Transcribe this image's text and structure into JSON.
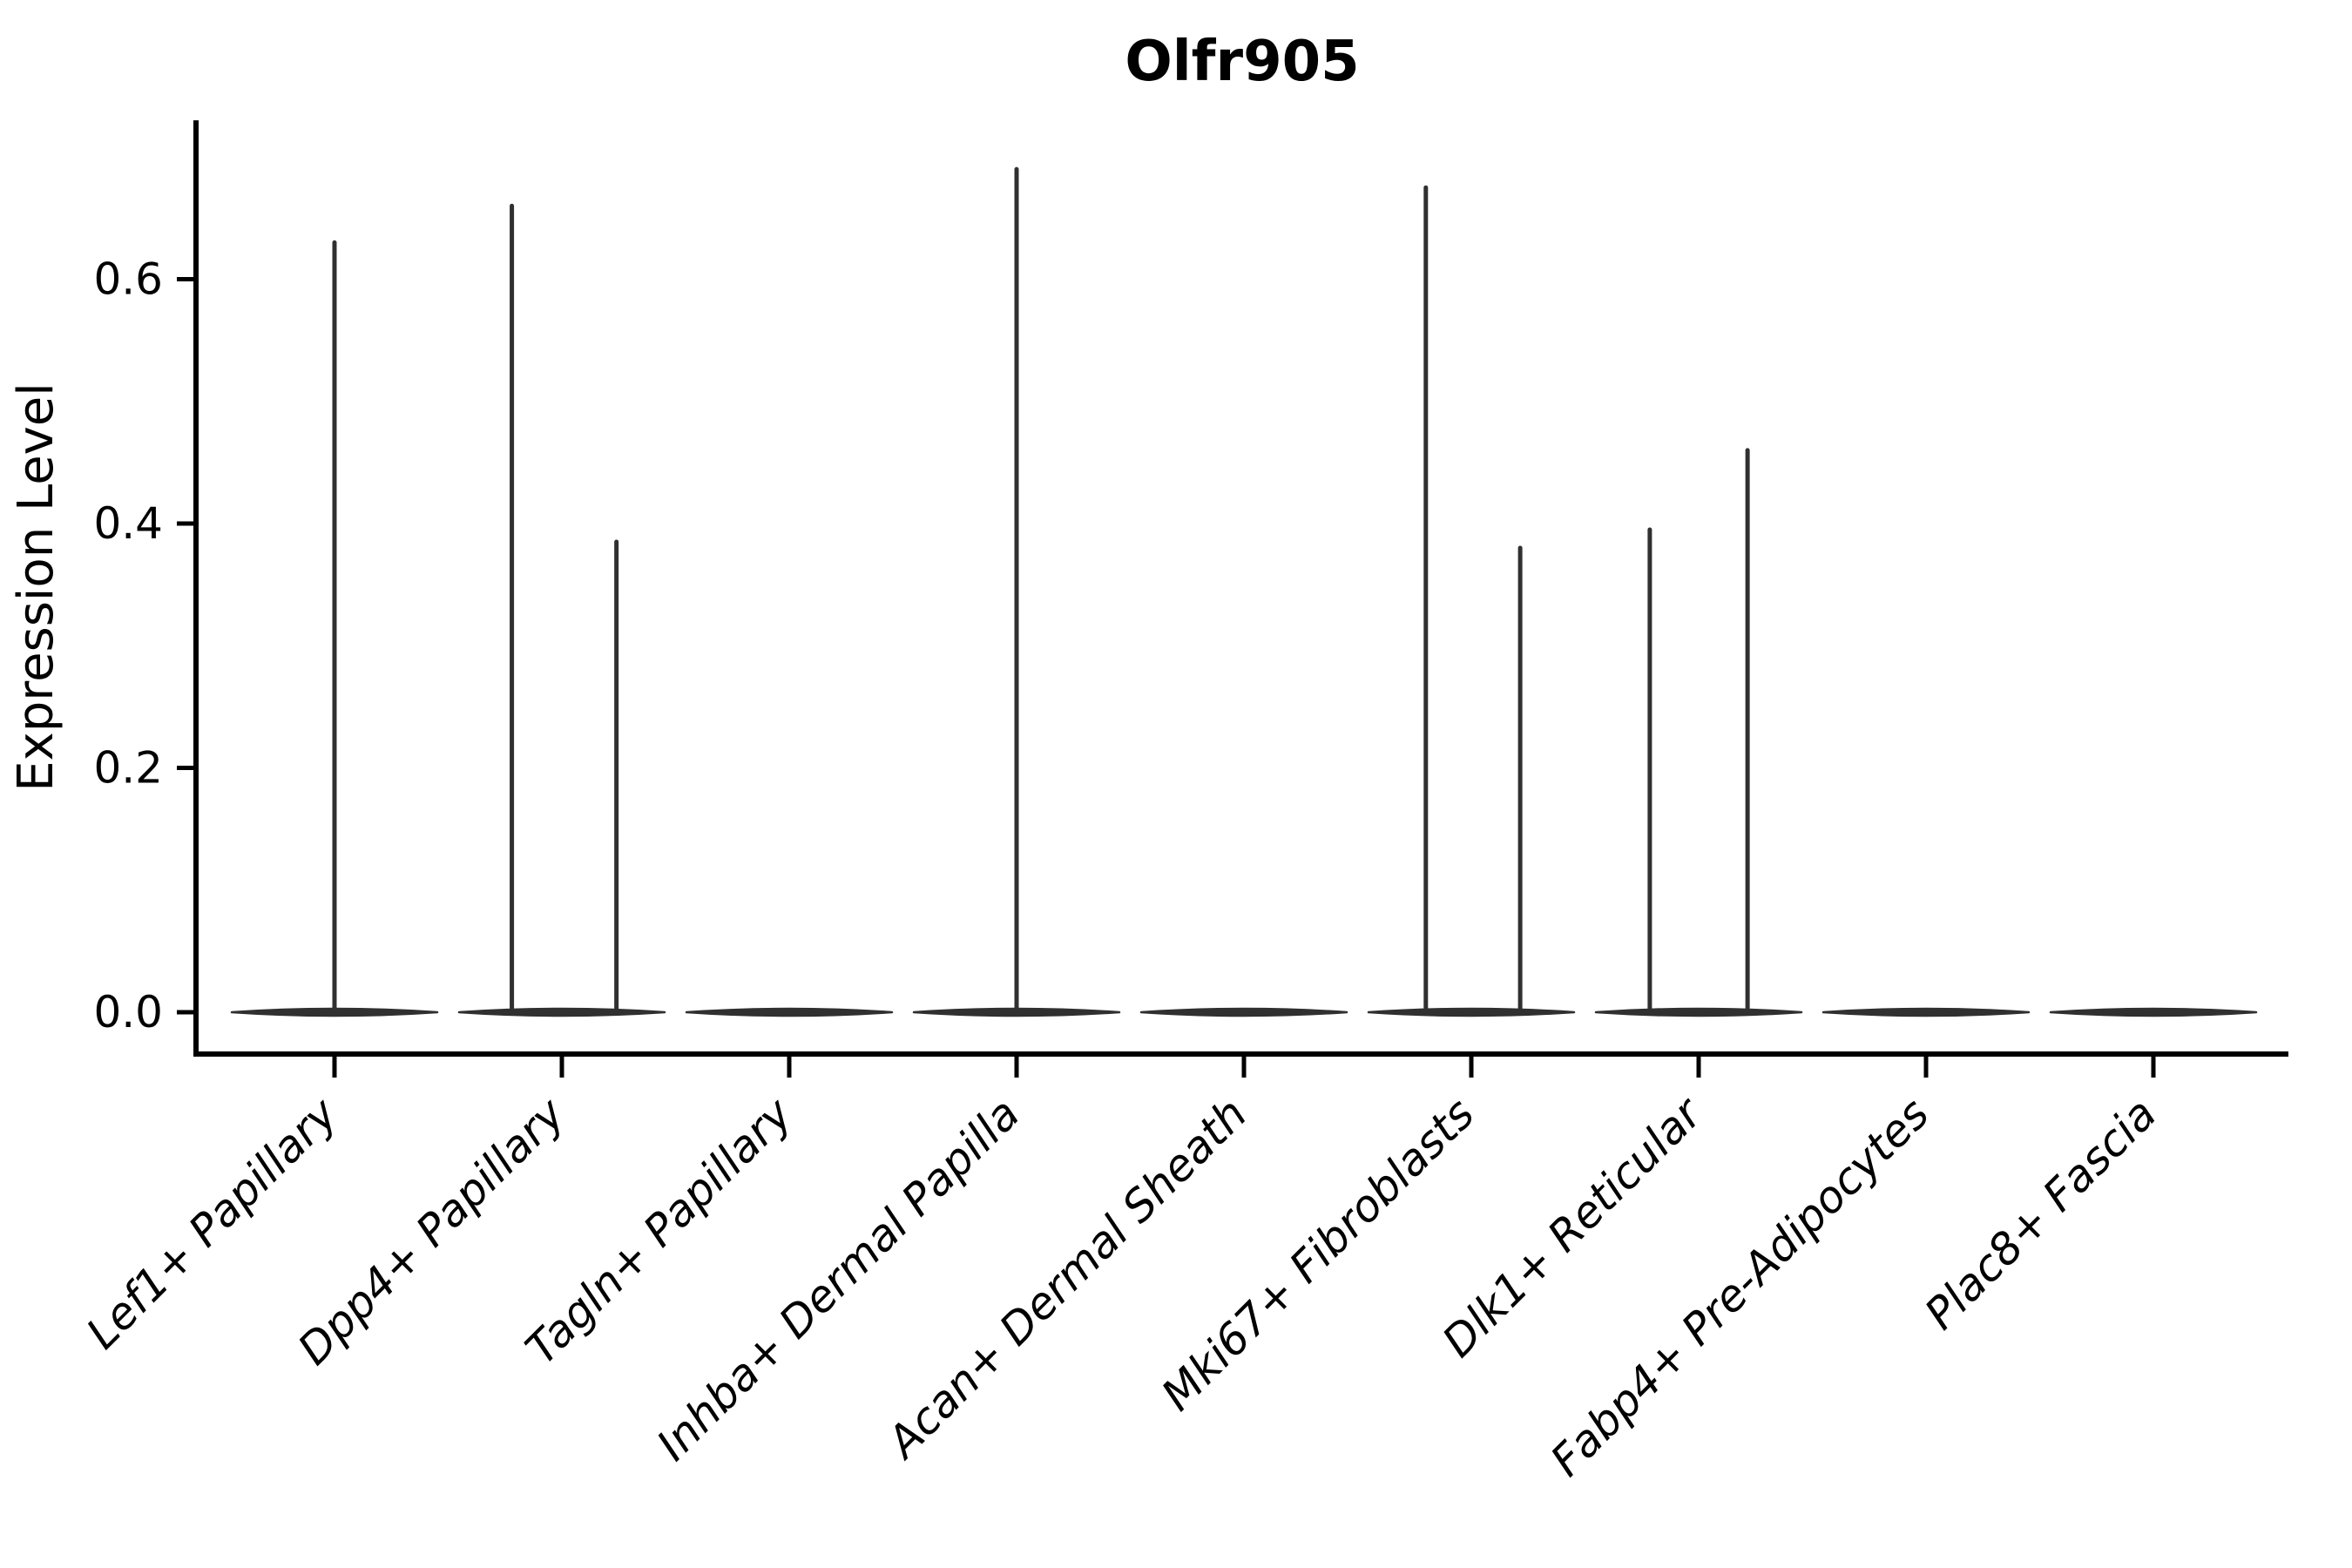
{
  "figure": {
    "background": "#ffffff"
  },
  "chart_data": {
    "type": "violin",
    "title": "Olfr905",
    "xlabel": "",
    "ylabel": "Expression Level",
    "ylim": [
      -0.034,
      0.73
    ],
    "yticks": [
      0.0,
      0.2,
      0.4,
      0.6
    ],
    "ytick_labels": [
      "0.0",
      "0.2",
      "0.4",
      "0.6"
    ],
    "x_tick_rotation_deg": 45,
    "grid": false,
    "legend": null,
    "violin_color": "#303030",
    "axis_color": "#000000",
    "categories": [
      "Lef1+ Papillary",
      "Dpp4+ Papillary",
      "Tagln+ Papillary",
      "Inhba+ Dermal Papilla",
      "Acan+ Dermal Sheath",
      "Mki67+ Fibroblasts",
      "Dlk1+ Reticular",
      "Fabp4+ Pre-Adipocytes",
      "Plac8+ Fascia"
    ],
    "violins": [
      {
        "label": "Lef1+ Papillary",
        "baseline_value": 0.0,
        "spikes": [
          {
            "offset_frac": 0.0,
            "max": 0.63
          }
        ]
      },
      {
        "label": "Dpp4+ Papillary",
        "baseline_value": 0.0,
        "spikes": [
          {
            "offset_frac": -0.22,
            "max": 0.66
          },
          {
            "offset_frac": 0.24,
            "max": 0.385
          }
        ]
      },
      {
        "label": "Tagln+ Papillary",
        "baseline_value": 0.0,
        "spikes": []
      },
      {
        "label": "Inhba+ Dermal Papilla",
        "baseline_value": 0.0,
        "spikes": [
          {
            "offset_frac": 0.0,
            "max": 0.69
          }
        ]
      },
      {
        "label": "Acan+ Dermal Sheath",
        "baseline_value": 0.0,
        "spikes": []
      },
      {
        "label": "Mki67+ Fibroblasts",
        "baseline_value": 0.0,
        "spikes": [
          {
            "offset_frac": -0.2,
            "max": 0.675
          },
          {
            "offset_frac": 0.215,
            "max": 0.38
          }
        ]
      },
      {
        "label": "Dlk1+ Reticular",
        "baseline_value": 0.0,
        "spikes": [
          {
            "offset_frac": -0.215,
            "max": 0.395
          },
          {
            "offset_frac": 0.215,
            "max": 0.46
          }
        ]
      },
      {
        "label": "Fabp4+ Pre-Adipocytes",
        "baseline_value": 0.0,
        "spikes": []
      },
      {
        "label": "Plac8+ Fascia",
        "baseline_value": 0.0,
        "spikes": []
      }
    ]
  }
}
